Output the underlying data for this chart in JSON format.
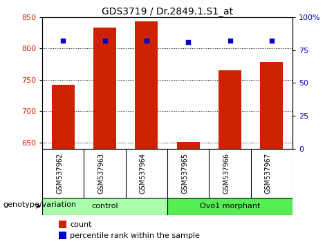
{
  "title": "GDS3719 / Dr.2849.1.S1_at",
  "samples": [
    "GSM537962",
    "GSM537963",
    "GSM537964",
    "GSM537965",
    "GSM537966",
    "GSM537967"
  ],
  "counts": [
    742,
    833,
    843,
    651,
    765,
    778
  ],
  "percentiles": [
    82,
    82,
    82,
    81,
    82,
    82
  ],
  "ylim_left": [
    640,
    850
  ],
  "ylim_right": [
    0,
    100
  ],
  "yticks_left": [
    650,
    700,
    750,
    800,
    850
  ],
  "yticks_right": [
    0,
    25,
    50,
    75,
    100
  ],
  "ytick_labels_right": [
    "0",
    "25",
    "50",
    "75",
    "100%"
  ],
  "bar_color": "#cc2200",
  "point_color": "#0000cc",
  "bar_width": 0.55,
  "groups": [
    {
      "label": "control",
      "start": 0,
      "end": 2,
      "color": "#aaffaa"
    },
    {
      "label": "Ovo1 morphant",
      "start": 3,
      "end": 5,
      "color": "#55ee55"
    }
  ],
  "legend_count_label": "count",
  "legend_pct_label": "percentile rank within the sample",
  "genotype_label": "genotype/variation",
  "tick_label_color_left": "#cc2200",
  "tick_label_color_right": "#0000cc",
  "bg_xtick": "#c8c8c8",
  "n_samples": 6
}
